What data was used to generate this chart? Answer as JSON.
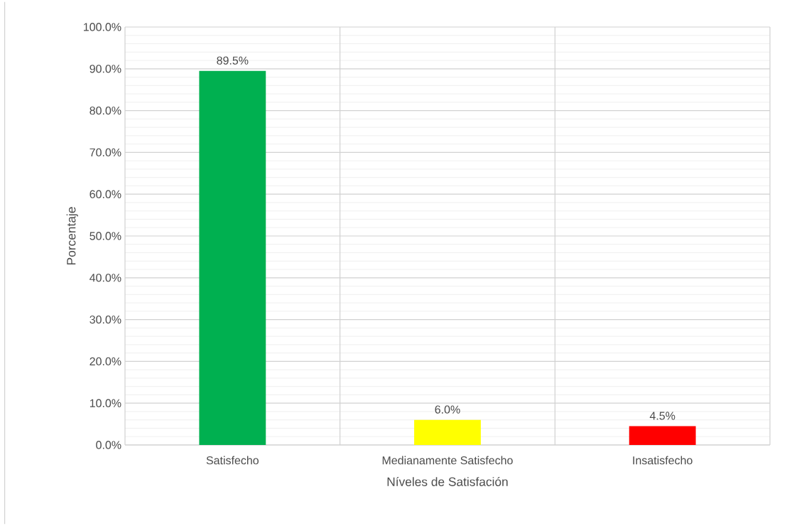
{
  "chart_data": {
    "type": "bar",
    "xlabel": "Níveles de Satisfación",
    "ylabel": "Porcentaje",
    "categories": [
      "Satisfecho",
      "Medianamente Satisfecho",
      "Insatisfecho"
    ],
    "values": [
      89.5,
      6.0,
      4.5
    ],
    "colors": [
      "#00b050",
      "#ffff00",
      "#ff0000"
    ],
    "value_labels": [
      "89.5%",
      "6.0%",
      "4.5%"
    ],
    "ylim": [
      0,
      100
    ],
    "yticks": [
      {
        "value": 0,
        "label": "0.0%"
      },
      {
        "value": 10,
        "label": "10.0%"
      },
      {
        "value": 20,
        "label": "20.0%"
      },
      {
        "value": 30,
        "label": "30.0%"
      },
      {
        "value": 40,
        "label": "40.0%"
      },
      {
        "value": 50,
        "label": "50.0%"
      },
      {
        "value": 60,
        "label": "60.0%"
      },
      {
        "value": 70,
        "label": "70.0%"
      },
      {
        "value": 80,
        "label": "80.0%"
      },
      {
        "value": 90,
        "label": "90.0%"
      },
      {
        "value": 100,
        "label": "100.0%"
      }
    ],
    "grid": true
  }
}
